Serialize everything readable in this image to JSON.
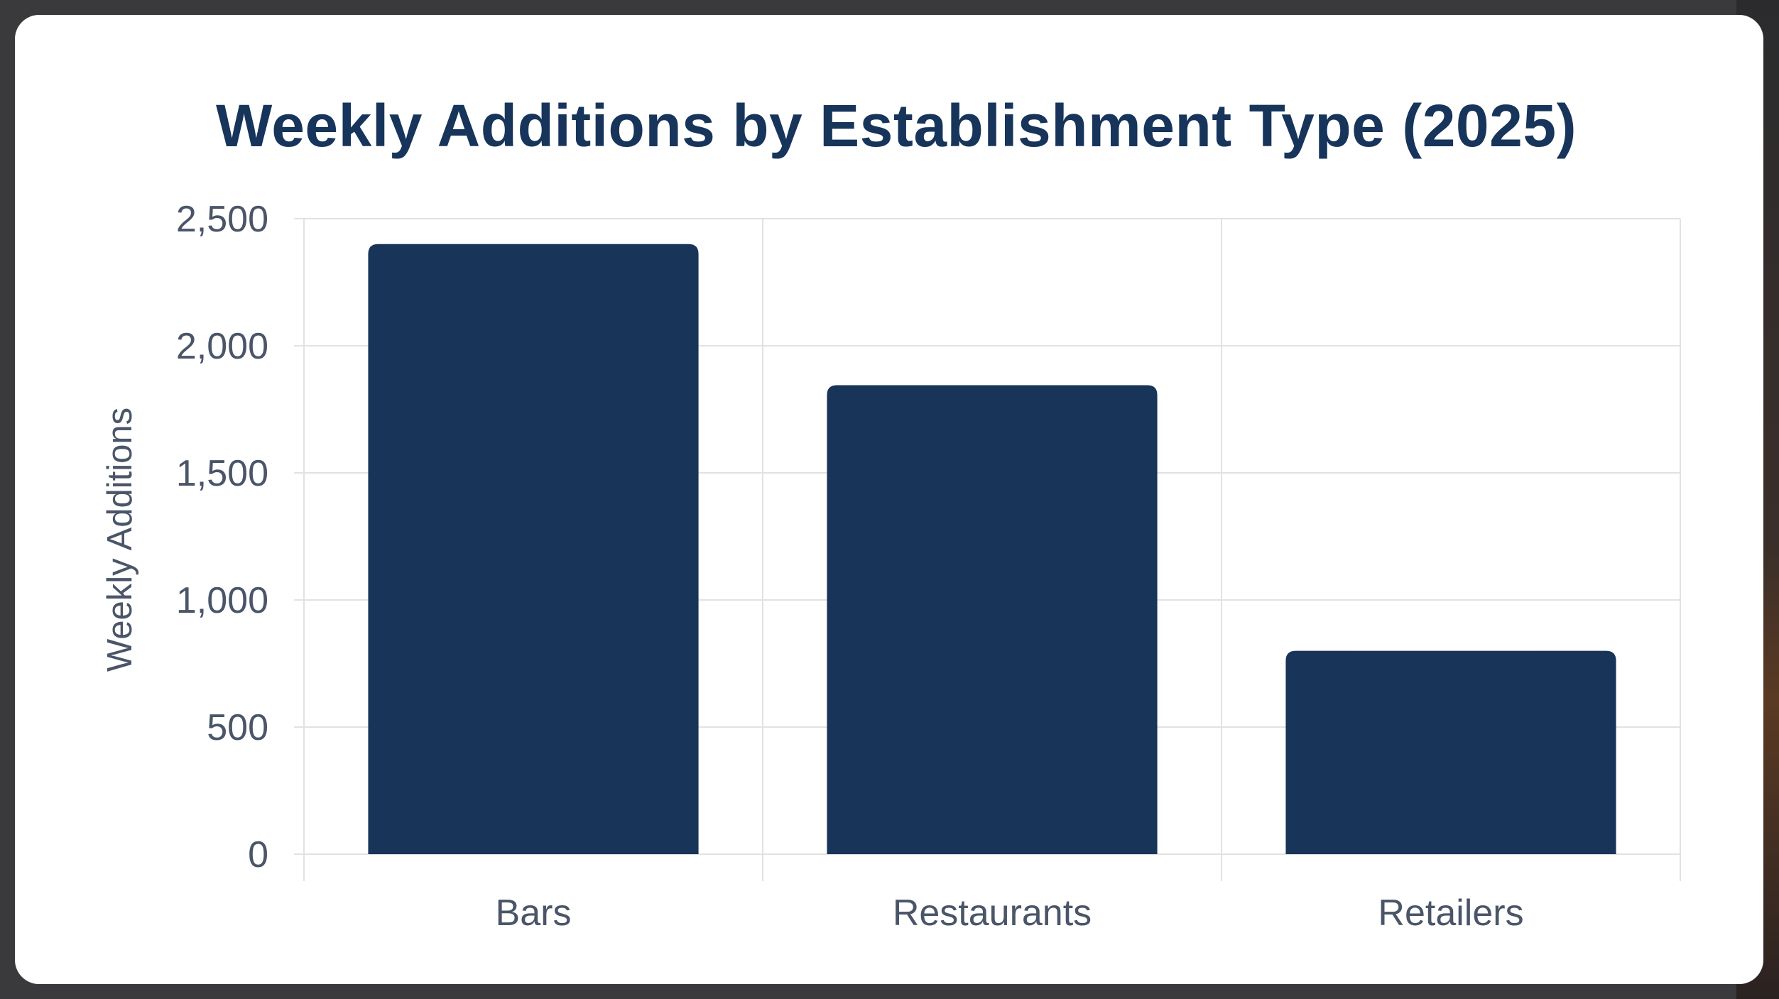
{
  "chart_data": {
    "type": "bar",
    "title": "Weekly Additions by Establishment Type (2025)",
    "xlabel": "",
    "ylabel": "Weekly Additions",
    "categories": [
      "Bars",
      "Restaurants",
      "Retailers"
    ],
    "values": [
      2400,
      1845,
      800
    ],
    "ylim": [
      0,
      2500
    ],
    "yticks": [
      0,
      500,
      1000,
      1500,
      2000,
      2500
    ],
    "ytick_labels": [
      "0",
      "500",
      "1,000",
      "1,500",
      "2,000",
      "2,500"
    ],
    "grid": true,
    "legend": "none",
    "bar_color": "#183458"
  }
}
